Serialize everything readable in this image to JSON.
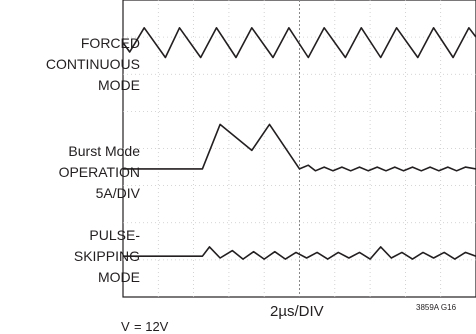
{
  "chart_data": {
    "type": "line",
    "title": "",
    "xlabel": "2µs/DIV",
    "ylabel": "",
    "grid": true,
    "grid_divisions": {
      "x": 10,
      "y": 8
    },
    "series": [
      {
        "name": "FORCED CONTINUOUS MODE",
        "label_lines": [
          "FORCED",
          "CONTINUOUS",
          "MODE"
        ],
        "x_div": [
          0,
          0.19,
          0.6,
          1.2,
          1.6,
          2.2,
          2.65,
          3.2,
          3.65,
          4.25,
          4.7,
          5.25,
          5.7,
          6.3,
          6.75,
          7.3,
          7.75,
          8.35,
          8.8,
          9.35,
          9.8,
          10
        ],
        "y_div": [
          6.85,
          6.6,
          7.25,
          6.45,
          7.25,
          6.45,
          7.25,
          6.45,
          7.25,
          6.45,
          7.25,
          6.45,
          7.25,
          6.45,
          7.25,
          6.45,
          7.25,
          6.45,
          7.25,
          6.45,
          7.25,
          7.0
        ]
      },
      {
        "name": "Burst Mode OPERATION 5A/DIV",
        "label_lines": [
          "Burst Mode",
          "OPERATION",
          "5A/DIV"
        ],
        "x_div": [
          0,
          2.25,
          2.75,
          3.65,
          4.15,
          5.0,
          5.25,
          5.45,
          5.7,
          5.95,
          6.2,
          6.45,
          6.7,
          6.95,
          7.2,
          7.45,
          7.7,
          7.95,
          8.2,
          8.45,
          8.7,
          8.95,
          9.2,
          9.45,
          9.7,
          10
        ],
        "y_div": [
          3.45,
          3.45,
          4.65,
          3.95,
          4.65,
          3.45,
          3.55,
          3.4,
          3.5,
          3.4,
          3.5,
          3.4,
          3.5,
          3.4,
          3.5,
          3.4,
          3.5,
          3.4,
          3.5,
          3.4,
          3.5,
          3.4,
          3.5,
          3.4,
          3.5,
          3.45
        ]
      },
      {
        "name": "PULSE-SKIPPING MODE",
        "label_lines": [
          "PULSE-",
          "SKIPPING",
          "MODE"
        ],
        "x_div": [
          0,
          2.25,
          2.45,
          2.75,
          3.1,
          3.4,
          3.7,
          4.0,
          4.3,
          4.6,
          4.9,
          5.2,
          5.5,
          5.8,
          6.1,
          6.4,
          6.7,
          7.0,
          7.3,
          7.6,
          7.9,
          8.2,
          8.5,
          8.8,
          9.1,
          9.4,
          9.7,
          10
        ],
        "y_div": [
          1.1,
          1.1,
          1.35,
          1.05,
          1.25,
          1.02,
          1.22,
          1.02,
          1.22,
          1.02,
          1.2,
          1.05,
          1.2,
          1.02,
          1.2,
          1.05,
          1.2,
          1.02,
          1.35,
          1.05,
          1.2,
          1.02,
          1.2,
          1.05,
          1.2,
          1.02,
          1.2,
          1.1
        ]
      }
    ]
  },
  "figure_id": "3859A G16",
  "footnote": "V    = 12V"
}
